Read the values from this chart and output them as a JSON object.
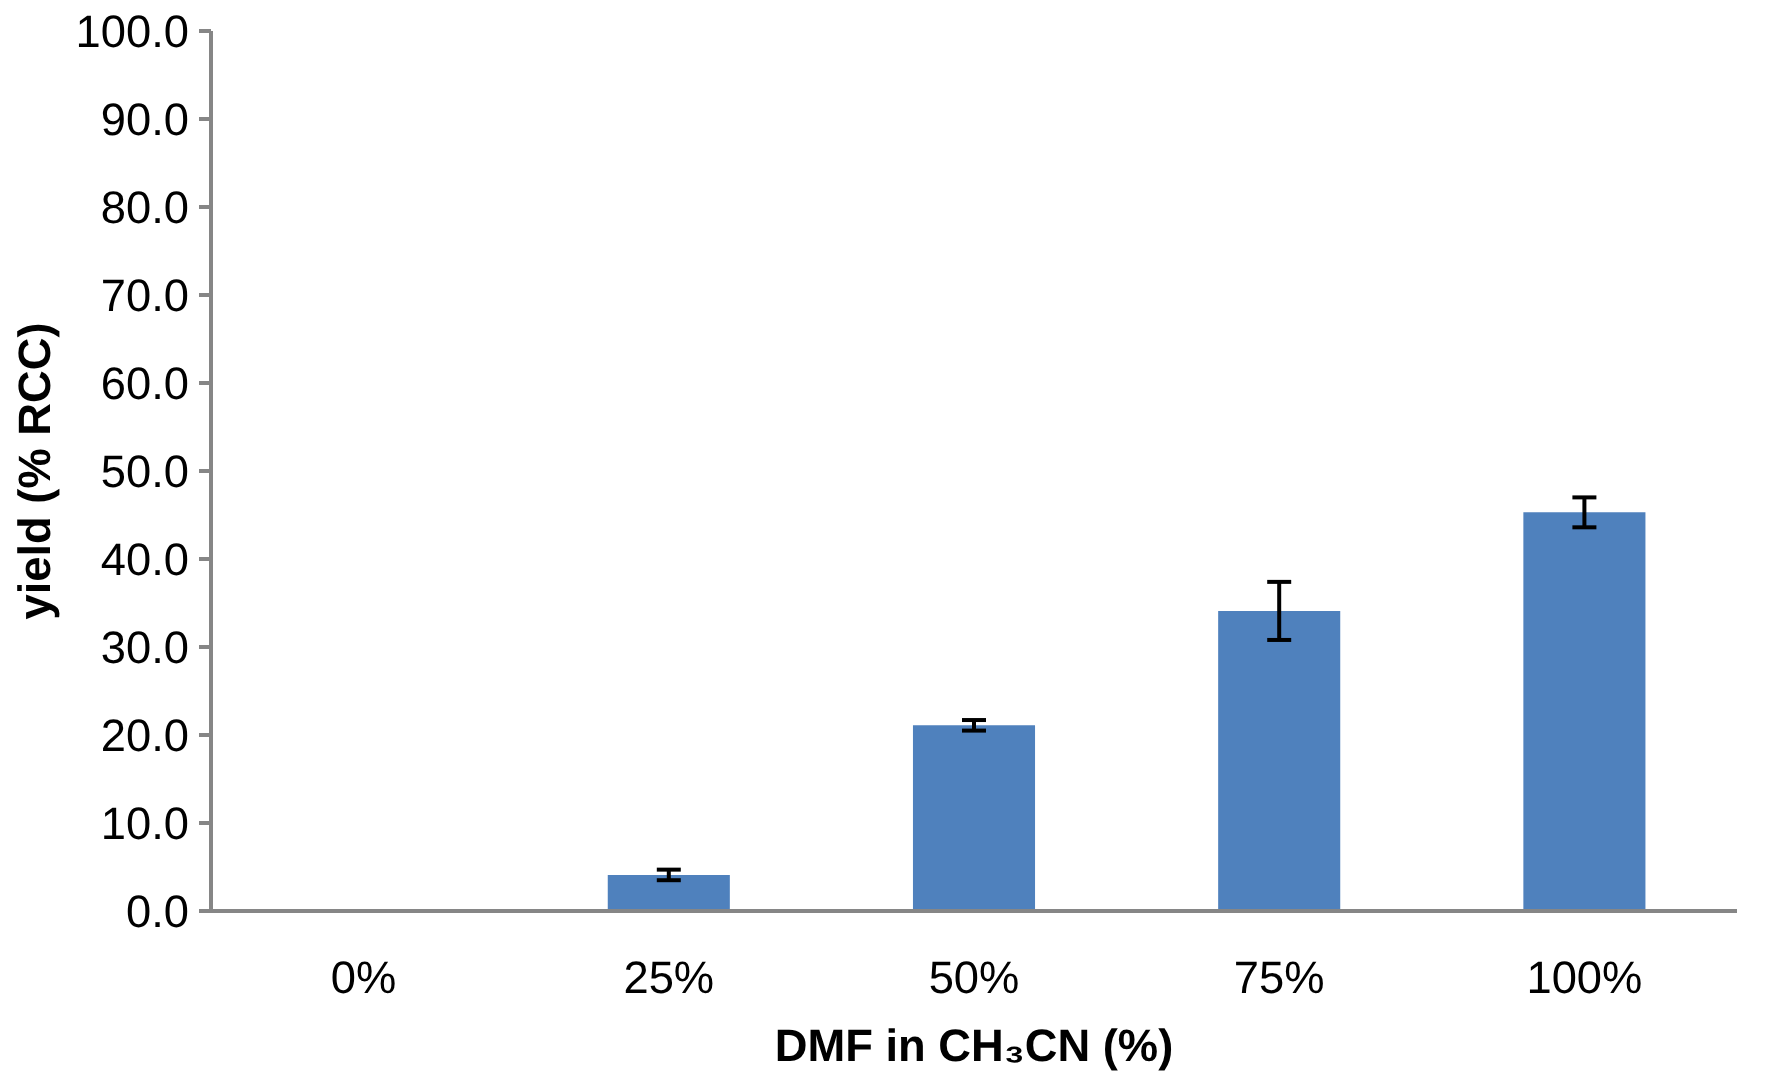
{
  "chart_data": {
    "type": "bar",
    "xlabel": "DMF in CH₃CN (%)",
    "ylabel": "yield (% RCC)",
    "categories": [
      "0%",
      "25%",
      "50%",
      "75%",
      "100%"
    ],
    "values": [
      0.0,
      4.1,
      21.1,
      34.1,
      45.3
    ],
    "errors": [
      null,
      0.6,
      0.6,
      3.3,
      1.7
    ],
    "color": "#4f81bd",
    "ylim": [
      0,
      100
    ],
    "yticks": [
      {
        "value": 0,
        "label": "0.0"
      },
      {
        "value": 10,
        "label": "10.0"
      },
      {
        "value": 20,
        "label": "20.0"
      },
      {
        "value": 30,
        "label": "30.0"
      },
      {
        "value": 40,
        "label": "40.0"
      },
      {
        "value": 50,
        "label": "50.0"
      },
      {
        "value": 60,
        "label": "60.0"
      },
      {
        "value": 70,
        "label": "70.0"
      },
      {
        "value": 80,
        "label": "80.0"
      },
      {
        "value": 90,
        "label": "90.0"
      },
      {
        "value": 100,
        "label": "100.0"
      }
    ],
    "grid": false
  }
}
